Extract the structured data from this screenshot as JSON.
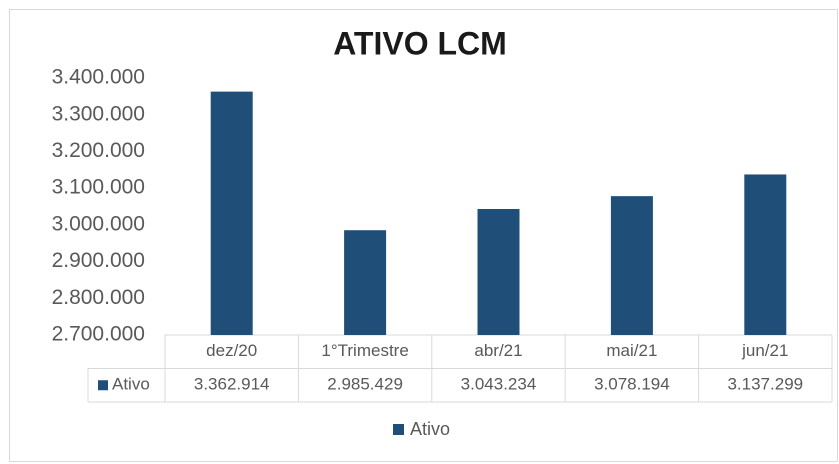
{
  "chart_data": {
    "type": "bar",
    "title": "ATIVO LCM",
    "categories": [
      "dez/20",
      "1°Trimestre",
      "abr/21",
      "mai/21",
      "jun/21"
    ],
    "series": [
      {
        "name": "Ativo",
        "color": "#1f4e79",
        "values": [
          3362914,
          2985429,
          3043234,
          3078194,
          3137299
        ],
        "value_labels": [
          "3.362.914",
          "2.985.429",
          "3.043.234",
          "3.078.194",
          "3.137.299"
        ]
      }
    ],
    "ylim": [
      2700000,
      3400000
    ],
    "yticks": [
      {
        "value": 2700000,
        "label": "2.700.000"
      },
      {
        "value": 2800000,
        "label": "2.800.000"
      },
      {
        "value": 2900000,
        "label": "2.900.000"
      },
      {
        "value": 3000000,
        "label": "3.000.000"
      },
      {
        "value": 3100000,
        "label": "3.100.000"
      },
      {
        "value": 3200000,
        "label": "3.200.000"
      },
      {
        "value": 3300000,
        "label": "3.300.000"
      },
      {
        "value": 3400000,
        "label": "3.400.000"
      }
    ],
    "legend": "bottom"
  }
}
